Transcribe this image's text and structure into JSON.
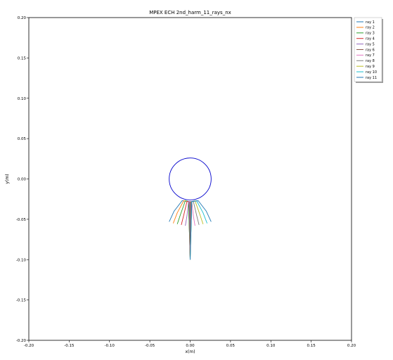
{
  "chart_data": {
    "type": "line",
    "title": "MPEX ECH  2nd_harm_11_rays_nx",
    "xlabel": "x(m)",
    "ylabel": "y(m)",
    "xlim": [
      -0.2,
      0.2
    ],
    "ylim": [
      -0.2,
      0.2
    ],
    "grid": false,
    "legend_placement": "outside-top-right",
    "x_ticks": [
      "-0.20",
      "-0.15",
      "-0.10",
      "-0.05",
      "0.00",
      "0.05",
      "0.10",
      "0.15",
      "0.20"
    ],
    "y_ticks": [
      "-0.20",
      "-0.15",
      "-0.10",
      "-0.05",
      "0.00",
      "0.05",
      "0.10",
      "0.15",
      "0.20"
    ],
    "boundary_circle": {
      "center": [
        0.0,
        0.0
      ],
      "radius": 0.026,
      "color": "#0000cc"
    },
    "series": [
      {
        "name": "ray 1",
        "color": "#1f77b4",
        "x": [
          0.0,
          -0.002,
          -0.01,
          -0.02,
          -0.026
        ],
        "y": [
          -0.1,
          -0.028,
          -0.027,
          -0.04,
          -0.053
        ]
      },
      {
        "name": "ray 2",
        "color": "#ff7f0e",
        "x": [
          0.0,
          -0.002,
          -0.008,
          -0.016,
          -0.021
        ],
        "y": [
          -0.1,
          -0.028,
          -0.027,
          -0.042,
          -0.055
        ]
      },
      {
        "name": "ray 3",
        "color": "#2ca02c",
        "x": [
          0.0,
          -0.002,
          -0.006,
          -0.012,
          -0.016
        ],
        "y": [
          -0.1,
          -0.028,
          -0.027,
          -0.044,
          -0.056
        ]
      },
      {
        "name": "ray 4",
        "color": "#d62728",
        "x": [
          0.0,
          -0.001,
          -0.004,
          -0.008,
          -0.011
        ],
        "y": [
          -0.1,
          -0.028,
          -0.028,
          -0.045,
          -0.057
        ]
      },
      {
        "name": "ray 5",
        "color": "#9467bd",
        "x": [
          0.0,
          -0.001,
          -0.002,
          -0.004,
          -0.006
        ],
        "y": [
          -0.1,
          -0.028,
          -0.028,
          -0.046,
          -0.058
        ]
      },
      {
        "name": "ray 6",
        "color": "#8c564b",
        "x": [
          0.0,
          0.0,
          0.0,
          0.0,
          0.0
        ],
        "y": [
          -0.1,
          -0.028,
          -0.028,
          -0.046,
          -0.058
        ]
      },
      {
        "name": "ray 7",
        "color": "#e377c2",
        "x": [
          0.0,
          0.001,
          0.002,
          0.004,
          0.006
        ],
        "y": [
          -0.1,
          -0.028,
          -0.028,
          -0.046,
          -0.058
        ]
      },
      {
        "name": "ray 8",
        "color": "#7f7f7f",
        "x": [
          0.0,
          0.001,
          0.004,
          0.008,
          0.011
        ],
        "y": [
          -0.1,
          -0.028,
          -0.028,
          -0.045,
          -0.057
        ]
      },
      {
        "name": "ray 9",
        "color": "#bcbd22",
        "x": [
          0.0,
          0.002,
          0.006,
          0.012,
          0.016
        ],
        "y": [
          -0.1,
          -0.028,
          -0.027,
          -0.044,
          -0.056
        ]
      },
      {
        "name": "ray 10",
        "color": "#17becf",
        "x": [
          0.0,
          0.002,
          0.008,
          0.016,
          0.021
        ],
        "y": [
          -0.1,
          -0.028,
          -0.027,
          -0.042,
          -0.055
        ]
      },
      {
        "name": "ray 11",
        "color": "#1f77b4",
        "x": [
          0.0,
          0.002,
          0.01,
          0.02,
          0.026
        ],
        "y": [
          -0.1,
          -0.028,
          -0.027,
          -0.04,
          -0.053
        ]
      }
    ]
  }
}
